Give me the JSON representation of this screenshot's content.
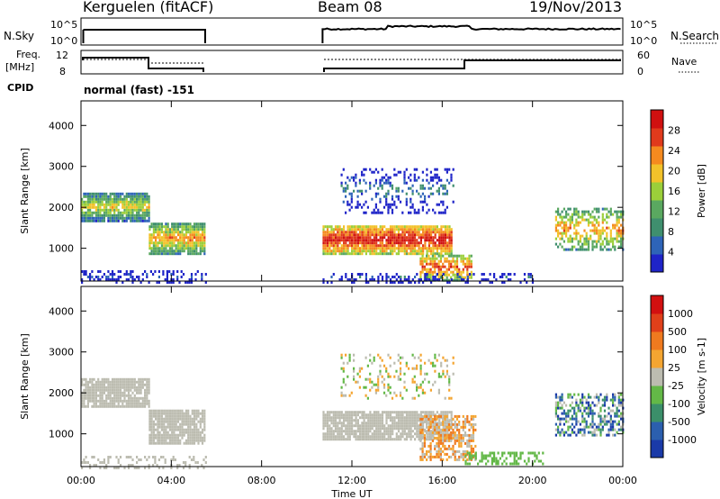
{
  "header": {
    "site": "Kerguelen (fitACF)",
    "beam": "Beam 08",
    "date": "19/Nov/2013"
  },
  "labels": {
    "nsky": "N.Sky",
    "nsearch": "N.Search",
    "freq_top": "Freq.",
    "freq_unit": "[MHz]",
    "nave": "Nave",
    "cpid": "CPID",
    "cpid_value": "normal (fast) -151",
    "nsky_tick_hi": "10^5",
    "nsky_tick_lo": "10^0",
    "freq_tick_hi": "12",
    "freq_tick_lo": "8",
    "nave_tick_hi": "60",
    "nave_tick_lo": "0"
  },
  "chart_data": [
    {
      "type": "heatmap",
      "name": "power",
      "ylabel": "Slant Range [km]",
      "xlabel": "Time UT",
      "x_ticks": [
        "00:00",
        "04:00",
        "08:00",
        "12:00",
        "16:00",
        "20:00",
        "00:00"
      ],
      "y_ticks": [
        1000,
        2000,
        3000,
        4000
      ],
      "ylim": [
        200,
        4600
      ],
      "colorbar": {
        "label": "Power [dB]",
        "ticks": [
          4,
          8,
          12,
          16,
          20,
          24,
          28
        ]
      },
      "regions": [
        {
          "t": [
            0,
            3
          ],
          "range": [
            1700,
            2400
          ],
          "level": "mid-high"
        },
        {
          "t": [
            3,
            5.5
          ],
          "range": [
            900,
            1600
          ],
          "level": "mid-high"
        },
        {
          "t": [
            10.7,
            16.5
          ],
          "range": [
            900,
            1600
          ],
          "level": "high"
        },
        {
          "t": [
            15,
            17.2
          ],
          "range": [
            300,
            900
          ],
          "level": "high"
        },
        {
          "t": [
            21,
            24
          ],
          "range": [
            1000,
            2000
          ],
          "level": "mid-high"
        }
      ]
    },
    {
      "type": "heatmap",
      "name": "velocity",
      "ylabel": "Slant Range [km]",
      "xlabel": "Time UT",
      "x_ticks": [
        "00:00",
        "04:00",
        "08:00",
        "12:00",
        "16:00",
        "20:00",
        "00:00"
      ],
      "y_ticks": [
        1000,
        2000,
        3000,
        4000
      ],
      "ylim": [
        200,
        4600
      ],
      "colorbar": {
        "label": "Velocity [m s-1]",
        "ticks": [
          1000,
          500,
          100,
          25,
          -25,
          -100,
          -500,
          -1000
        ]
      }
    }
  ],
  "colors": {
    "power_scale": [
      "#1f24c8",
      "#2e64b8",
      "#3f8f6e",
      "#5aa860",
      "#9bcf3a",
      "#f2c22a",
      "#f58a1f",
      "#e03a1c",
      "#d01010"
    ],
    "velocity_scale": [
      "#1a3aa8",
      "#2b5fae",
      "#3b8f6a",
      "#63b847",
      "#bcbcb0",
      "#f4a531",
      "#ef7a1f",
      "#e0401a",
      "#d21010"
    ]
  }
}
